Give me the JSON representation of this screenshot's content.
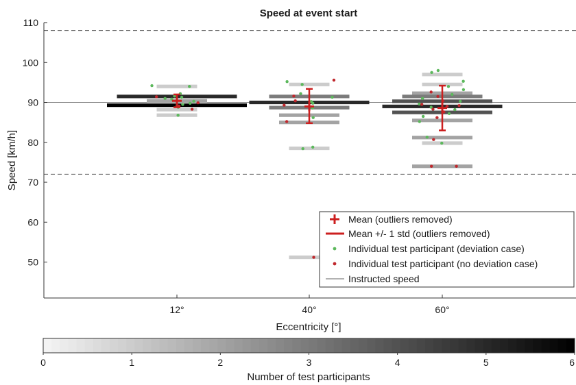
{
  "chart_data": {
    "type": "scatter",
    "title": "Speed at event start",
    "xlabel": "Eccentricity [°]",
    "ylabel": "Speed [km/h]",
    "categories": [
      "12°",
      "40°",
      "60°"
    ],
    "ylim": [
      41,
      110
    ],
    "yticks": [
      50,
      60,
      70,
      80,
      90,
      100,
      110
    ],
    "grid": false,
    "instructed_speed": 90,
    "reference_lines": [
      108,
      72
    ],
    "groups": [
      {
        "category": "12°",
        "mean": 90.4,
        "std_low": 88.8,
        "std_high": 92.0,
        "density_bars": [
          {
            "speed": 94.0,
            "count": 1
          },
          {
            "speed": 91.5,
            "count": 5
          },
          {
            "speed": 90.4,
            "count": 2
          },
          {
            "speed": 89.3,
            "count": 6
          },
          {
            "speed": 88.2,
            "count": 1
          },
          {
            "speed": 86.8,
            "count": 1
          }
        ],
        "deviation_points": [
          94.0,
          92.2,
          91.6,
          91.0,
          90.3,
          89.8,
          89.2,
          88.8,
          86.8,
          94.2,
          91.3,
          89.5,
          90.8
        ],
        "no_deviation_points": [
          91.4,
          89.9,
          89.1,
          88.3
        ]
      },
      {
        "category": "40°",
        "mean": 89.0,
        "std_low": 84.8,
        "std_high": 93.4,
        "density_bars": [
          {
            "speed": 94.5,
            "count": 1
          },
          {
            "speed": 91.5,
            "count": 3
          },
          {
            "speed": 90.0,
            "count": 5
          },
          {
            "speed": 88.7,
            "count": 3
          },
          {
            "speed": 86.8,
            "count": 2
          },
          {
            "speed": 85.0,
            "count": 2
          },
          {
            "speed": 78.5,
            "count": 1
          },
          {
            "speed": 51.2,
            "count": 1
          }
        ],
        "deviation_points": [
          95.2,
          94.5,
          92.2,
          91.3,
          90.2,
          89.8,
          88.6,
          86.2,
          78.8,
          78.4
        ],
        "no_deviation_points": [
          95.6,
          91.6,
          90.4,
          89.3,
          85.2,
          51.2
        ]
      },
      {
        "category": "60°",
        "mean": 88.6,
        "std_low": 83.0,
        "std_high": 94.2,
        "density_bars": [
          {
            "speed": 97.0,
            "count": 1
          },
          {
            "speed": 94.5,
            "count": 1
          },
          {
            "speed": 92.3,
            "count": 2
          },
          {
            "speed": 91.5,
            "count": 3
          },
          {
            "speed": 90.3,
            "count": 4
          },
          {
            "speed": 89.0,
            "count": 5
          },
          {
            "speed": 87.5,
            "count": 4
          },
          {
            "speed": 85.5,
            "count": 2
          },
          {
            "speed": 81.2,
            "count": 2
          },
          {
            "speed": 79.8,
            "count": 1
          },
          {
            "speed": 74.0,
            "count": 2
          }
        ],
        "deviation_points": [
          98.0,
          97.5,
          95.3,
          94.0,
          93.2,
          92.0,
          91.0,
          90.3,
          89.6,
          88.8,
          88.2,
          87.2,
          86.5,
          85.2,
          81.3,
          79.8
        ],
        "no_deviation_points": [
          92.6,
          91.5,
          90.4,
          89.5,
          89.0,
          88.3,
          87.6,
          86.2,
          80.7,
          74.0,
          74.0,
          89.2
        ]
      }
    ],
    "legend": {
      "position": "lower-right",
      "entries": [
        "Mean (outliers removed)",
        "Mean +/- 1 std  (outliers removed)",
        "Individual test participant (deviation case)",
        "Individual test participant (no deviation case)",
        "Instructed speed"
      ]
    },
    "colorbar": {
      "label": "Number of test participants",
      "min": 0,
      "max": 6,
      "ticks": [
        "0",
        "1",
        "2",
        "3",
        "4",
        "5",
        "6"
      ]
    },
    "colors": {
      "mean": "#cc1f1f",
      "deviation": "#5cb85c",
      "no_deviation": "#c0282d",
      "reference": "#666666",
      "instructed": "#888888"
    }
  }
}
